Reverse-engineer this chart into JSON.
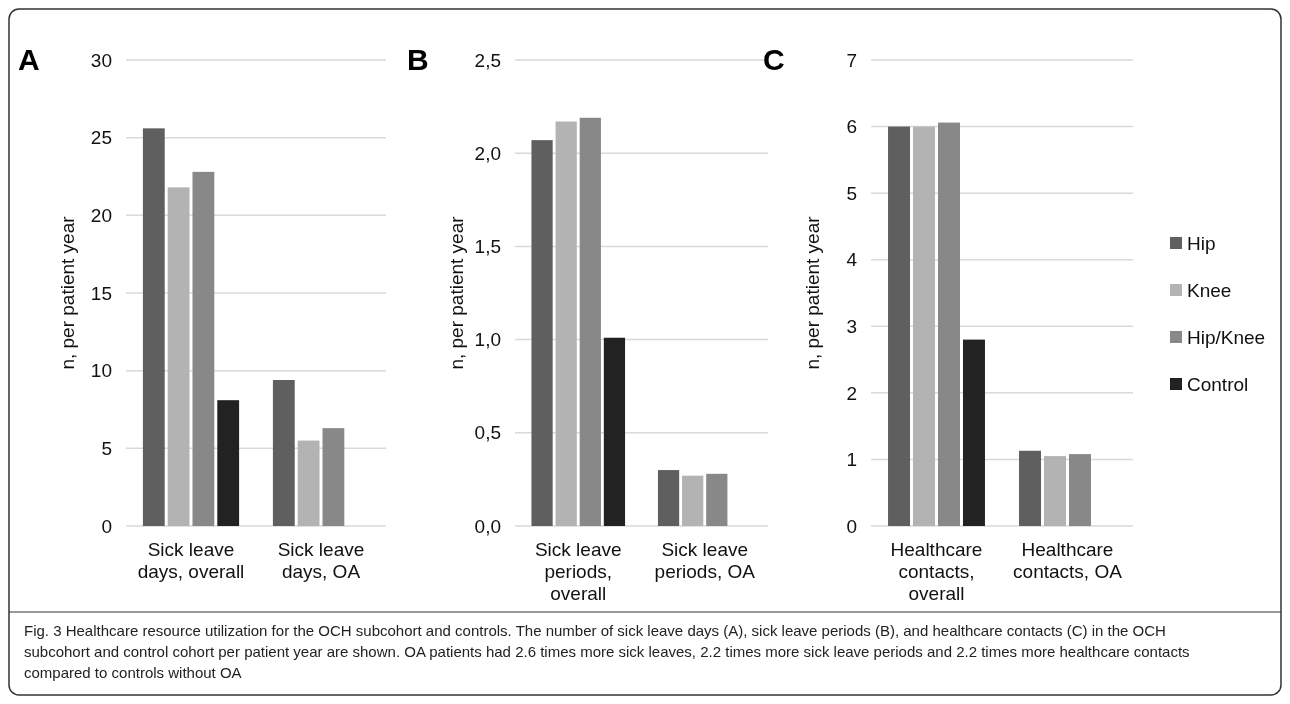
{
  "chart_data": [
    {
      "type": "bar",
      "title": "A",
      "ylabel": "n, per patient year",
      "categories": [
        "Sick leave days, overall",
        "Sick leave days, OA"
      ],
      "series": [
        {
          "color": "#5f5f5f",
          "values": [
            25.6,
            9.4
          ]
        },
        {
          "color": "#b3b3b3",
          "values": [
            21.8,
            5.5
          ]
        },
        {
          "color": "#888888",
          "values": [
            22.8,
            6.3
          ]
        },
        {
          "color": "#222222",
          "values": [
            8.1,
            null
          ]
        }
      ],
      "ylim": [
        0,
        30
      ],
      "yticks": [
        0,
        5,
        10,
        15,
        20,
        25,
        30
      ],
      "grid": "y",
      "legend": false,
      "annotations": [
        "Fig. 3 Healthcare resource utilization for the OCH subcohort and controls. The number of sick leave days (A), sick leave periods (B), and healthcare contacts (C) in the OCH subcohort and control cohort per patient year are shown. OA patients had 2.6 times more sick leaves, 2.2 times more sick leave periods and 2.2 times more healthcare contacts compared to controls without OA"
      ]
    },
    {
      "type": "bar",
      "title": "B",
      "ylabel": "n, per patient year",
      "categories": [
        "Sick leave periods, overall",
        "Sick leave periods, OA"
      ],
      "series": [
        {
          "color": "#5f5f5f",
          "values": [
            2.07,
            0.3
          ]
        },
        {
          "color": "#b3b3b3",
          "values": [
            2.17,
            0.27
          ]
        },
        {
          "color": "#888888",
          "values": [
            2.19,
            0.28
          ]
        },
        {
          "color": "#222222",
          "values": [
            1.01,
            null
          ]
        }
      ],
      "ylim": [
        0,
        2.5
      ],
      "yticks": [
        {
          "value": 0,
          "label": "0,0"
        },
        {
          "value": 0.5,
          "label": "0,5"
        },
        {
          "value": 1,
          "label": "1,0"
        },
        {
          "value": 1.5,
          "label": "1,5"
        },
        {
          "value": 2,
          "label": "2,0"
        },
        {
          "value": 2.5,
          "label": "2,5"
        }
      ],
      "grid": "y",
      "legend": false
    },
    {
      "type": "bar",
      "title": "C",
      "ylabel": "n, per patient year",
      "categories": [
        "Healthcare contacts, overall",
        "Healthcare contacts, OA"
      ],
      "series": [
        {
          "name": "Hip",
          "color": "#5f5f5f",
          "values": [
            6.0,
            1.13
          ]
        },
        {
          "name": "Knee",
          "color": "#b3b3b3",
          "values": [
            6.0,
            1.05
          ]
        },
        {
          "name": "Hip/Knee",
          "color": "#888888",
          "values": [
            6.06,
            1.08
          ]
        },
        {
          "name": "Control",
          "color": "#222222",
          "values": [
            2.8,
            null
          ]
        }
      ],
      "ylim": [
        0,
        7
      ],
      "yticks": [
        0,
        1,
        2,
        3,
        4,
        5,
        6,
        7
      ],
      "grid": "y",
      "legend": "right"
    }
  ]
}
